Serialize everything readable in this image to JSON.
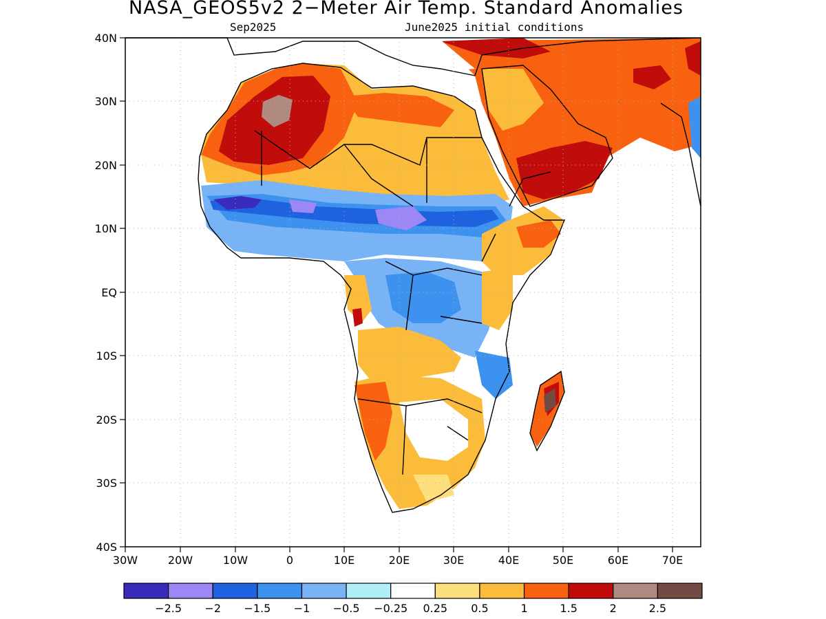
{
  "title": "NASA_GEOS5v2 2−Meter Air Temp. Standard Anomalies",
  "subtitle_left": "Sep2025",
  "subtitle_right": "June2025 initial conditions",
  "axes": {
    "lat_labels": [
      "40N",
      "30N",
      "20N",
      "10N",
      "EQ",
      "10S",
      "20S",
      "30S",
      "40S"
    ],
    "lon_labels": [
      "30W",
      "20W",
      "10W",
      "0",
      "10E",
      "20E",
      "30E",
      "40E",
      "50E",
      "60E",
      "70E"
    ],
    "lat_range": [
      -40,
      40
    ],
    "lon_range": [
      -30,
      75
    ],
    "grid": "dotted"
  },
  "colorbar": {
    "colors": [
      "#3b2bbd",
      "#9c87f5",
      "#1e62e0",
      "#3c92ee",
      "#78b4f5",
      "#b0eef8",
      "#ffffff",
      "#fedf7e",
      "#fbbc3b",
      "#f8610f",
      "#c10c0c",
      "#b08a80",
      "#744b42"
    ],
    "labels": [
      "−2.5",
      "−2",
      "−1.5",
      "−1",
      "−0.5",
      "−0.25",
      "0.25",
      "0.5",
      "1",
      "1.5",
      "2",
      "2.5"
    ]
  }
}
